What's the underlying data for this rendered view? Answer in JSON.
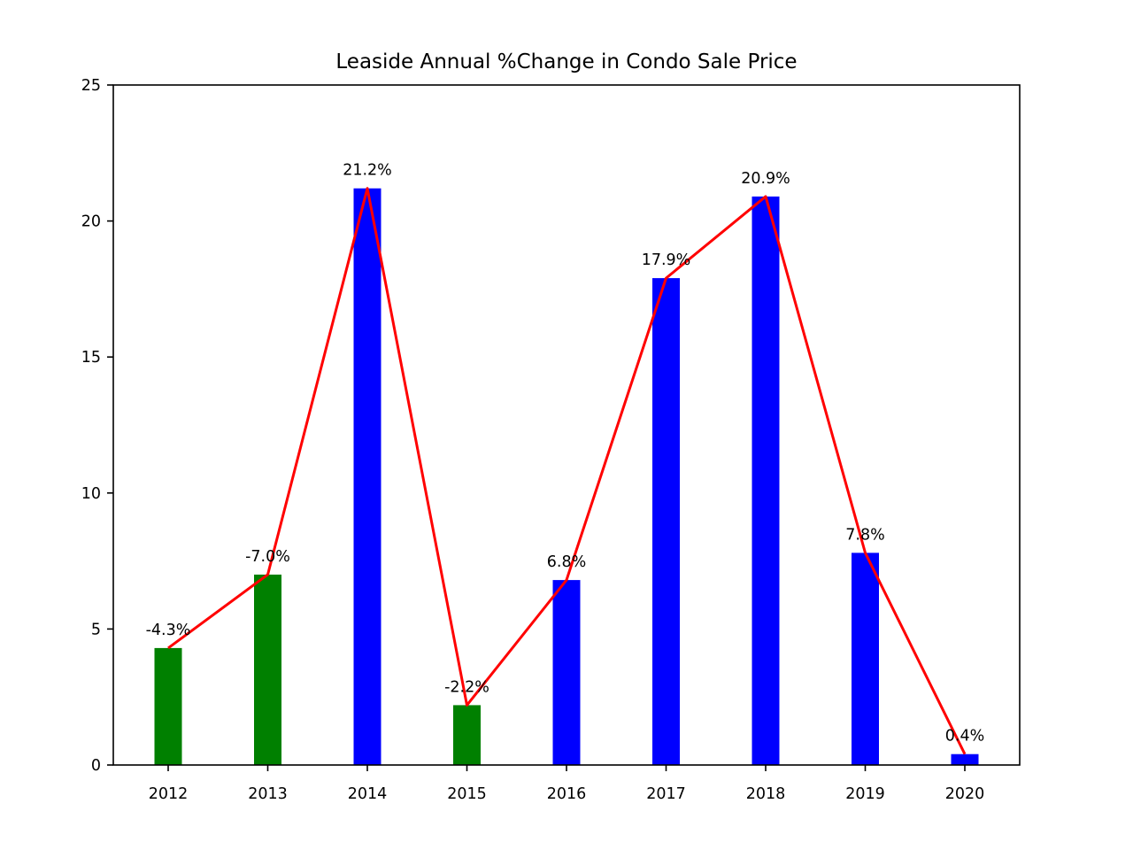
{
  "chart_data": {
    "type": "bar",
    "title": "Leaside Annual %Change in Condo Sale Price",
    "xlabel": "",
    "ylabel": "",
    "categories": [
      "2012",
      "2013",
      "2014",
      "2015",
      "2016",
      "2017",
      "2018",
      "2019",
      "2020"
    ],
    "values": [
      4.3,
      7.0,
      21.2,
      2.2,
      6.8,
      17.9,
      20.9,
      7.8,
      0.4
    ],
    "data_labels": [
      "-4.3%",
      "-7.0%",
      "21.2%",
      "-2.2%",
      "6.8%",
      "17.9%",
      "20.9%",
      "7.8%",
      "0.4%"
    ],
    "bar_colors": [
      "#008000",
      "#008000",
      "#0000ff",
      "#008000",
      "#0000ff",
      "#0000ff",
      "#0000ff",
      "#0000ff",
      "#0000ff"
    ],
    "line": {
      "values": [
        4.3,
        7.0,
        21.2,
        2.2,
        6.8,
        17.9,
        20.9,
        7.8,
        0.4
      ],
      "color": "#ff0000"
    },
    "ylim": [
      0,
      25
    ],
    "yticks": [
      0,
      5,
      10,
      15,
      20,
      25
    ],
    "grid": false,
    "legend": "none"
  }
}
